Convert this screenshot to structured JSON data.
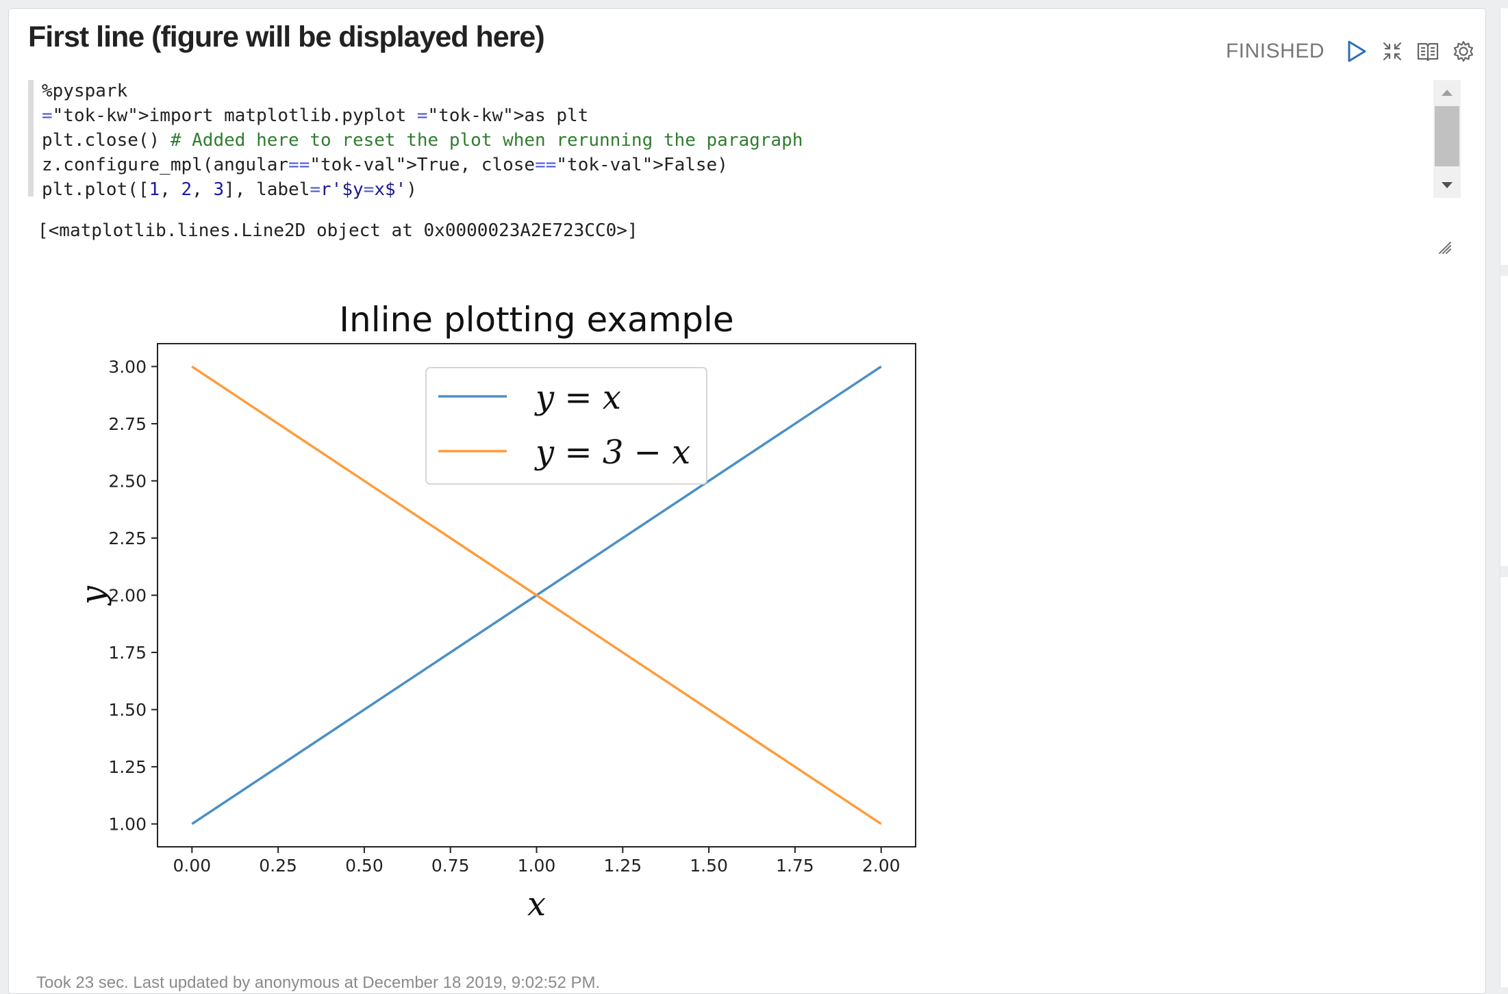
{
  "paragraph": {
    "title": "First line (figure will be displayed here)",
    "status": "FINISHED",
    "controls": [
      "run-icon",
      "collapse-icon",
      "book-icon",
      "gear-icon"
    ]
  },
  "editor": {
    "lines": [
      "%pyspark",
      "import matplotlib.pyplot as plt",
      "plt.close() # Added here to reset the plot when rerunning the paragraph",
      "z.configure_mpl(angular=True, close=False)",
      "plt.plot([1, 2, 3], label=r'$y=x$')"
    ]
  },
  "output": {
    "text": "[<matplotlib.lines.Line2D object at 0x0000023A2E723CC0>]"
  },
  "footer": {
    "text": "Took 23 sec. Last updated by anonymous at December 18 2019, 9:02:52 PM."
  },
  "colors": {
    "series_blue": "#4a8fc7",
    "series_orange": "#ff9c3c",
    "status": "#777777",
    "accent_run": "#2c6fb5"
  },
  "chart_data": {
    "type": "line",
    "title": "Inline plotting example",
    "xlabel": "x",
    "ylabel": "y",
    "xlim": [
      -0.1,
      2.1
    ],
    "ylim": [
      0.9,
      3.1
    ],
    "xticks": [
      "0.00",
      "0.25",
      "0.50",
      "0.75",
      "1.00",
      "1.25",
      "1.50",
      "1.75",
      "2.00"
    ],
    "yticks": [
      "1.00",
      "1.25",
      "1.50",
      "1.75",
      "2.00",
      "2.25",
      "2.50",
      "2.75",
      "3.00"
    ],
    "grid": false,
    "legend_position": "top-center",
    "series": [
      {
        "name": "y = x",
        "x": [
          0,
          1,
          2
        ],
        "y": [
          1,
          2,
          3
        ],
        "color": "#4a8fc7"
      },
      {
        "name": "y = 3 − x",
        "x": [
          0,
          1,
          2
        ],
        "y": [
          3,
          2,
          1
        ],
        "color": "#ff9c3c"
      }
    ]
  }
}
